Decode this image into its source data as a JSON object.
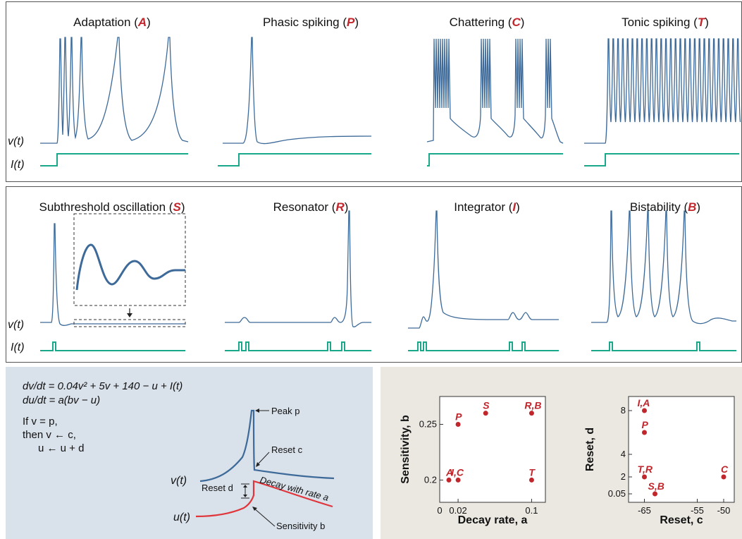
{
  "top_row": [
    {
      "name": "Adaptation",
      "letter": "A"
    },
    {
      "name": "Phasic spiking",
      "letter": "P"
    },
    {
      "name": "Chattering",
      "letter": "C"
    },
    {
      "name": "Tonic spiking",
      "letter": "T"
    }
  ],
  "mid_row": [
    {
      "name": "Subthreshold oscillation",
      "letter": "S"
    },
    {
      "name": "Resonator",
      "letter": "R"
    },
    {
      "name": "Integrator",
      "letter": "I"
    },
    {
      "name": "Bistability",
      "letter": "B"
    }
  ],
  "labels": {
    "v": "v(t)",
    "i": "I(t)"
  },
  "equations": {
    "dv": "dv/dt = 0.04v² + 5v + 140 − u + I(t)",
    "du": "du/dt = a(bv − u)",
    "if": "If v = p,",
    "then_v": "then v ← c,",
    "then_u": "u ← u + d"
  },
  "diagram": {
    "peak": "Peak p",
    "reset_c": "Reset c",
    "reset_d": "Reset d",
    "decay": "Decay with rate a",
    "sensitivity": "Sensitivity b",
    "v_label": "v(t)",
    "u_label": "u(t)"
  },
  "colors": {
    "voltage": "#3d6a99",
    "current": "#1aa88a",
    "recovery": "#e0353a",
    "accent": "#c0262c"
  },
  "chart_data": [
    {
      "type": "scatter",
      "xlabel": "Decay rate, a",
      "ylabel": "Sensitivity, b",
      "xticks": [
        "0",
        "0.02",
        "0.1"
      ],
      "yticks": [
        "0.2",
        "0.25"
      ],
      "points": [
        {
          "label": "A",
          "x": 0.01,
          "y": 0.2
        },
        {
          "label": "I,C",
          "x": 0.02,
          "y": 0.2
        },
        {
          "label": "P",
          "x": 0.02,
          "y": 0.25
        },
        {
          "label": "S",
          "x": 0.05,
          "y": 0.26
        },
        {
          "label": "R,B",
          "x": 0.1,
          "y": 0.26
        },
        {
          "label": "T",
          "x": 0.1,
          "y": 0.2
        }
      ]
    },
    {
      "type": "scatter",
      "xlabel": "Reset, c",
      "ylabel": "Reset, d",
      "xticks": [
        "-65",
        "-55",
        "-50"
      ],
      "yticks": [
        "0.05",
        "2",
        "4",
        "8"
      ],
      "points": [
        {
          "label": "I,A",
          "x": -65,
          "y": 8
        },
        {
          "label": "P",
          "x": -65,
          "y": 6
        },
        {
          "label": "T,R",
          "x": -65,
          "y": 2
        },
        {
          "label": "S,B",
          "x": -63,
          "y": 0.05
        },
        {
          "label": "C",
          "x": -50,
          "y": 2
        }
      ]
    }
  ]
}
